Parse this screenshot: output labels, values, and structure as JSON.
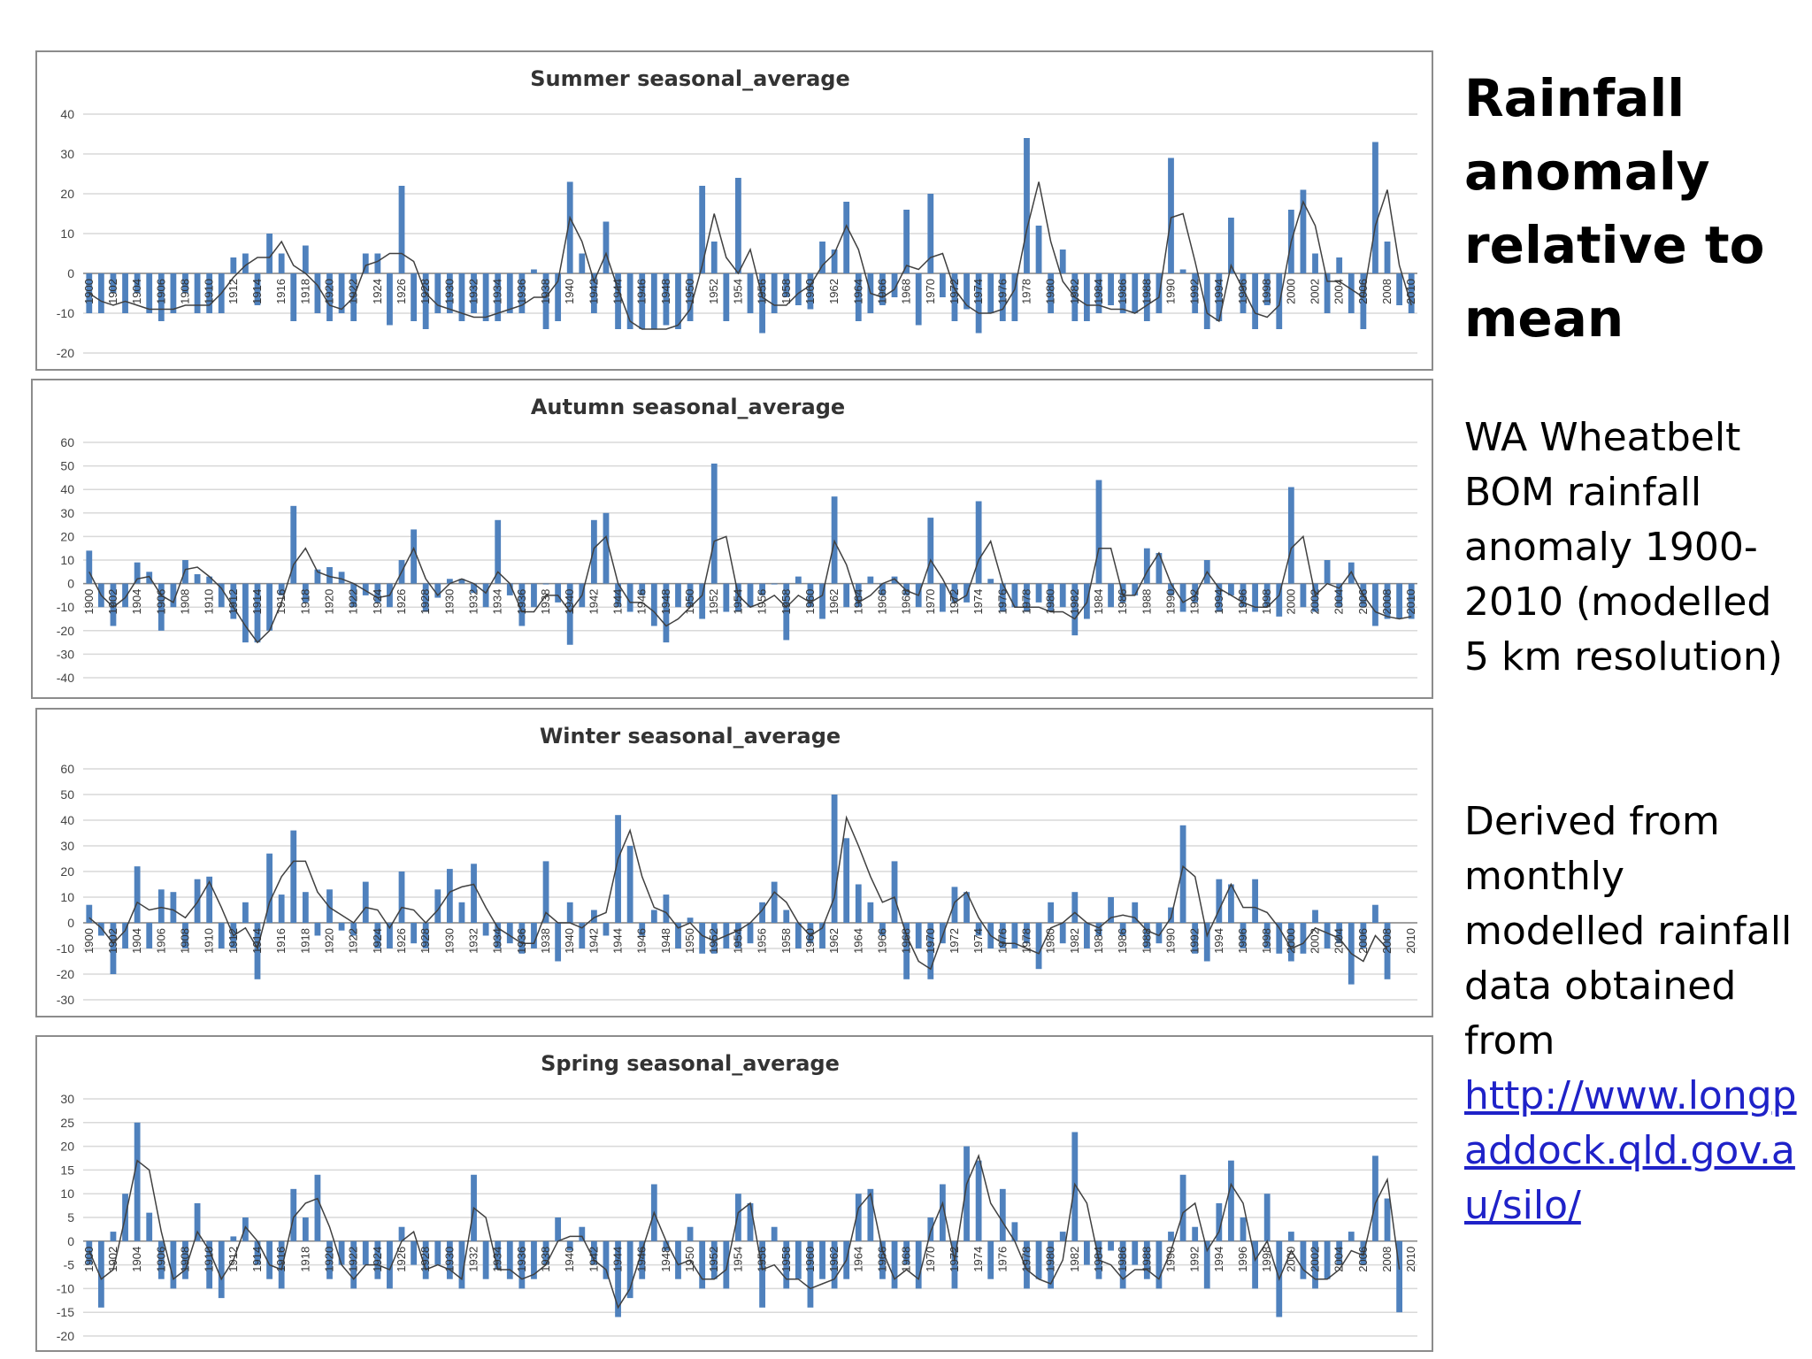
{
  "slide": {
    "title": "Rainfall anomaly relative to mean",
    "description": "WA Wheatbelt BOM rainfall anomaly 1900-2010 (modelled 5 km resolution)",
    "source_text": "Derived from monthly modelled rainfall data obtained from",
    "source_link": "http://www.longpaddock.qld.gov.au/silo/",
    "link_color": "#1f22c8"
  },
  "chart_style": {
    "bar_color": "#4f81bd",
    "line_color": "#404040",
    "grid_color": "#d9d9d9"
  },
  "chart_data": [
    {
      "type": "bar",
      "title": "Summer seasonal_average",
      "ylim": [
        -20,
        40
      ],
      "yticks": [
        -20,
        -10,
        0,
        10,
        20,
        30,
        40
      ],
      "x_start": 1900,
      "x_end": 2010,
      "x_label_step": 2,
      "grid": true,
      "series": [
        {
          "type": "bar",
          "values": [
            -10,
            -10,
            -5,
            -10,
            -5,
            -10,
            -12,
            -10,
            -5,
            -10,
            -10,
            -10,
            4,
            5,
            -8,
            10,
            5,
            -12,
            7,
            -10,
            -12,
            -10,
            -12,
            5,
            5,
            -13,
            22,
            -12,
            -14,
            -10,
            -10,
            -12,
            -10,
            -12,
            -12,
            -10,
            -10,
            1,
            -14,
            -12,
            23,
            5,
            -10,
            13,
            -14,
            -14,
            -14,
            -14,
            -13,
            -14,
            -12,
            22,
            8,
            -12,
            24,
            -10,
            -15,
            -10,
            -6,
            -8,
            -9,
            8,
            6,
            18,
            -12,
            -10,
            -8,
            -6,
            16,
            -13,
            20,
            -6,
            -12,
            -9,
            -15,
            -10,
            -12,
            -12,
            34,
            12,
            -10,
            6,
            -12,
            -12,
            -10,
            -8,
            -10,
            -10,
            -12,
            -10,
            29,
            1,
            -10,
            -14,
            -12,
            14,
            -10,
            -14,
            -8,
            -14,
            16,
            21,
            5,
            -10,
            4,
            -10,
            -14,
            33,
            8,
            -8,
            -10
          ]
        },
        {
          "type": "line",
          "name": "",
          "values": [
            -5,
            -7,
            -8,
            -7,
            -8,
            -9,
            -9,
            -9,
            -8,
            -8,
            -8,
            -5,
            -1,
            2,
            4,
            4,
            8,
            2,
            0,
            -3,
            -8,
            -9,
            -6,
            2,
            3,
            5,
            5,
            3,
            -5,
            -8,
            -9,
            -10,
            -11,
            -11,
            -10,
            -9,
            -8,
            -6,
            -6,
            -2,
            14,
            8,
            -2,
            5,
            -4,
            -12,
            -14,
            -14,
            -14,
            -13,
            -9,
            2,
            15,
            4,
            0,
            6,
            -6,
            -8,
            -8,
            -5,
            -3,
            2,
            5,
            12,
            6,
            -5,
            -6,
            -4,
            2,
            1,
            4,
            5,
            -4,
            -8,
            -10,
            -10,
            -9,
            -4,
            11,
            23,
            8,
            -2,
            -6,
            -8,
            -8,
            -9,
            -9,
            -10,
            -8,
            -6,
            14,
            15,
            3,
            -10,
            -12,
            2,
            -4,
            -10,
            -11,
            -8,
            8,
            18,
            12,
            -2,
            -2,
            -4,
            -6,
            12,
            21,
            2,
            -8
          ]
        }
      ]
    },
    {
      "type": "bar",
      "title": "Autumn seasonal_average",
      "ylim": [
        -40,
        60
      ],
      "yticks": [
        -40,
        -30,
        -20,
        -10,
        0,
        10,
        20,
        30,
        40,
        50,
        60
      ],
      "x_start": 1900,
      "x_end": 2010,
      "x_label_step": 2,
      "grid": true,
      "series": [
        {
          "type": "bar",
          "values": [
            14,
            -10,
            -18,
            -10,
            9,
            5,
            -20,
            -10,
            10,
            4,
            3,
            -10,
            -15,
            -25,
            -25,
            -20,
            -5,
            33,
            -8,
            6,
            7,
            5,
            -10,
            -5,
            -8,
            -10,
            10,
            23,
            -12,
            -6,
            2,
            2,
            -4,
            -10,
            27,
            -5,
            -18,
            -10,
            0,
            -8,
            -26,
            -10,
            27,
            30,
            -10,
            -12,
            -5,
            -18,
            -25,
            -10,
            -10,
            -15,
            51,
            -12,
            -12,
            -10,
            -5,
            0,
            -24,
            3,
            -10,
            -15,
            37,
            -10,
            -10,
            3,
            -5,
            3,
            -5,
            -10,
            28,
            -12,
            -8,
            -8,
            35,
            2,
            -12,
            -10,
            -12,
            -8,
            -12,
            -10,
            -22,
            -15,
            44,
            -10,
            -8,
            -5,
            15,
            13,
            -5,
            -12,
            -8,
            10,
            -12,
            -5,
            -10,
            -12,
            -10,
            -14,
            41,
            -10,
            -12,
            10,
            -10,
            9,
            -10,
            -18,
            -15,
            -15,
            -15
          ]
        },
        {
          "type": "line",
          "name": "",
          "values": [
            5,
            -5,
            -10,
            -6,
            2,
            3,
            -5,
            -8,
            6,
            7,
            3,
            -2,
            -10,
            -18,
            -25,
            -20,
            -8,
            8,
            15,
            5,
            3,
            2,
            0,
            -3,
            -6,
            -5,
            5,
            15,
            2,
            -5,
            0,
            2,
            0,
            -4,
            5,
            0,
            -12,
            -12,
            -5,
            -5,
            -12,
            -5,
            15,
            20,
            0,
            -8,
            -8,
            -12,
            -18,
            -15,
            -10,
            -5,
            18,
            20,
            -5,
            -10,
            -8,
            -5,
            -10,
            -5,
            -8,
            -5,
            18,
            8,
            -8,
            -5,
            0,
            2,
            -3,
            -5,
            10,
            2,
            -8,
            -5,
            10,
            18,
            0,
            -10,
            -10,
            -10,
            -12,
            -12,
            -15,
            -8,
            15,
            15,
            -5,
            -5,
            5,
            13,
            0,
            -8,
            -5,
            5,
            -2,
            -5,
            -8,
            -10,
            -10,
            -5,
            15,
            20,
            -5,
            0,
            -2,
            5,
            -5,
            -12,
            -14,
            -15,
            -14
          ]
        }
      ]
    },
    {
      "type": "bar",
      "title": "Winter seasonal_average",
      "ylim": [
        -30,
        60
      ],
      "yticks": [
        -30,
        -20,
        -10,
        0,
        10,
        20,
        30,
        40,
        50,
        60
      ],
      "x_start": 1900,
      "x_end": 2010,
      "x_label_step": 2,
      "grid": true,
      "series": [
        {
          "type": "bar",
          "values": [
            7,
            -5,
            -20,
            -10,
            22,
            -10,
            13,
            12,
            -10,
            17,
            18,
            -10,
            -10,
            8,
            -22,
            27,
            11,
            36,
            12,
            -5,
            13,
            -3,
            -5,
            16,
            -10,
            -10,
            20,
            -8,
            -10,
            13,
            21,
            8,
            23,
            -5,
            -10,
            -8,
            -12,
            -10,
            24,
            -15,
            8,
            -10,
            5,
            -5,
            42,
            30,
            -5,
            5,
            11,
            -10,
            2,
            -12,
            -12,
            -10,
            -10,
            -8,
            8,
            16,
            5,
            -10,
            -8,
            -10,
            50,
            33,
            15,
            8,
            -5,
            24,
            -22,
            -10,
            -22,
            -8,
            14,
            12,
            -5,
            -10,
            -10,
            -10,
            -8,
            -18,
            8,
            -8,
            12,
            -10,
            -5,
            10,
            -5,
            8,
            -10,
            -8,
            6,
            38,
            -12,
            -15,
            17,
            15,
            -10,
            17,
            -10,
            -12,
            -15,
            -12,
            5,
            -10,
            -8,
            -24,
            -10,
            7,
            -22
          ]
        },
        {
          "type": "line",
          "name": "",
          "values": [
            2,
            -2,
            -8,
            -3,
            8,
            5,
            6,
            5,
            2,
            8,
            16,
            6,
            -5,
            -2,
            -10,
            8,
            18,
            24,
            24,
            12,
            6,
            3,
            0,
            6,
            5,
            -2,
            6,
            5,
            0,
            5,
            12,
            14,
            15,
            6,
            -2,
            -5,
            -8,
            -8,
            4,
            0,
            0,
            -2,
            2,
            4,
            25,
            36,
            18,
            6,
            4,
            -2,
            0,
            -5,
            -7,
            -5,
            -3,
            0,
            5,
            12,
            8,
            0,
            -5,
            -2,
            10,
            41,
            30,
            18,
            8,
            10,
            -5,
            -15,
            -18,
            -5,
            8,
            12,
            2,
            -5,
            -8,
            -8,
            -10,
            -12,
            -2,
            0,
            4,
            0,
            -2,
            2,
            3,
            2,
            -3,
            -5,
            2,
            22,
            18,
            -5,
            5,
            15,
            6,
            6,
            4,
            -2,
            -10,
            -8,
            -2,
            -4,
            -6,
            -12,
            -15,
            -5,
            -10
          ]
        }
      ]
    },
    {
      "type": "bar",
      "title": "Spring seasonal_average",
      "ylim": [
        -20,
        30
      ],
      "yticks": [
        -20,
        -15,
        -10,
        -5,
        0,
        5,
        10,
        15,
        20,
        25,
        30
      ],
      "x_start": 1900,
      "x_end": 2010,
      "x_label_step": 2,
      "grid": true,
      "series": [
        {
          "type": "bar",
          "values": [
            -5,
            -14,
            2,
            10,
            25,
            6,
            -8,
            -10,
            -8,
            8,
            -10,
            -12,
            1,
            5,
            -5,
            -8,
            -10,
            11,
            5,
            14,
            -8,
            -5,
            -10,
            -5,
            -8,
            -10,
            3,
            -5,
            -8,
            -5,
            -8,
            -10,
            14,
            -8,
            -6,
            -8,
            -10,
            -8,
            -5,
            5,
            -2,
            3,
            -5,
            -8,
            -16,
            -12,
            -8,
            12,
            -2,
            -8,
            3,
            -10,
            -8,
            -10,
            10,
            8,
            -14,
            3,
            -10,
            -8,
            -14,
            -8,
            -10,
            -8,
            10,
            11,
            -8,
            -10,
            -5,
            -10,
            5,
            12,
            -10,
            20,
            17,
            -8,
            11,
            4,
            -10,
            -8,
            -10,
            2,
            23,
            -5,
            -8,
            -2,
            -10,
            -5,
            -8,
            -10,
            2,
            14,
            3,
            -10,
            8,
            17,
            5,
            -10,
            10,
            -16,
            2,
            -8,
            -10,
            -8,
            -5,
            2,
            -5,
            18,
            9,
            -15
          ]
        },
        {
          "type": "line",
          "name": "",
          "values": [
            -2,
            -8,
            -6,
            5,
            17,
            15,
            2,
            -8,
            -6,
            2,
            -2,
            -8,
            -4,
            3,
            0,
            -5,
            -6,
            5,
            8,
            9,
            3,
            -5,
            -8,
            -5,
            -5,
            -6,
            0,
            2,
            -6,
            -5,
            -6,
            -8,
            7,
            5,
            -6,
            -6,
            -8,
            -7,
            -5,
            0,
            1,
            1,
            -4,
            -6,
            -14,
            -10,
            -2,
            6,
            0,
            -5,
            -4,
            -8,
            -8,
            -6,
            6,
            8,
            -6,
            -5,
            -8,
            -8,
            -10,
            -9,
            -8,
            -4,
            7,
            10,
            -2,
            -8,
            -6,
            -8,
            2,
            8,
            -4,
            12,
            18,
            8,
            4,
            0,
            -6,
            -8,
            -9,
            -4,
            12,
            8,
            -4,
            -5,
            -8,
            -6,
            -6,
            -8,
            -2,
            6,
            8,
            -2,
            2,
            12,
            8,
            -4,
            0,
            -8,
            -2,
            -6,
            -8,
            -8,
            -6,
            -2,
            -3,
            8,
            13,
            -6
          ]
        }
      ]
    }
  ]
}
